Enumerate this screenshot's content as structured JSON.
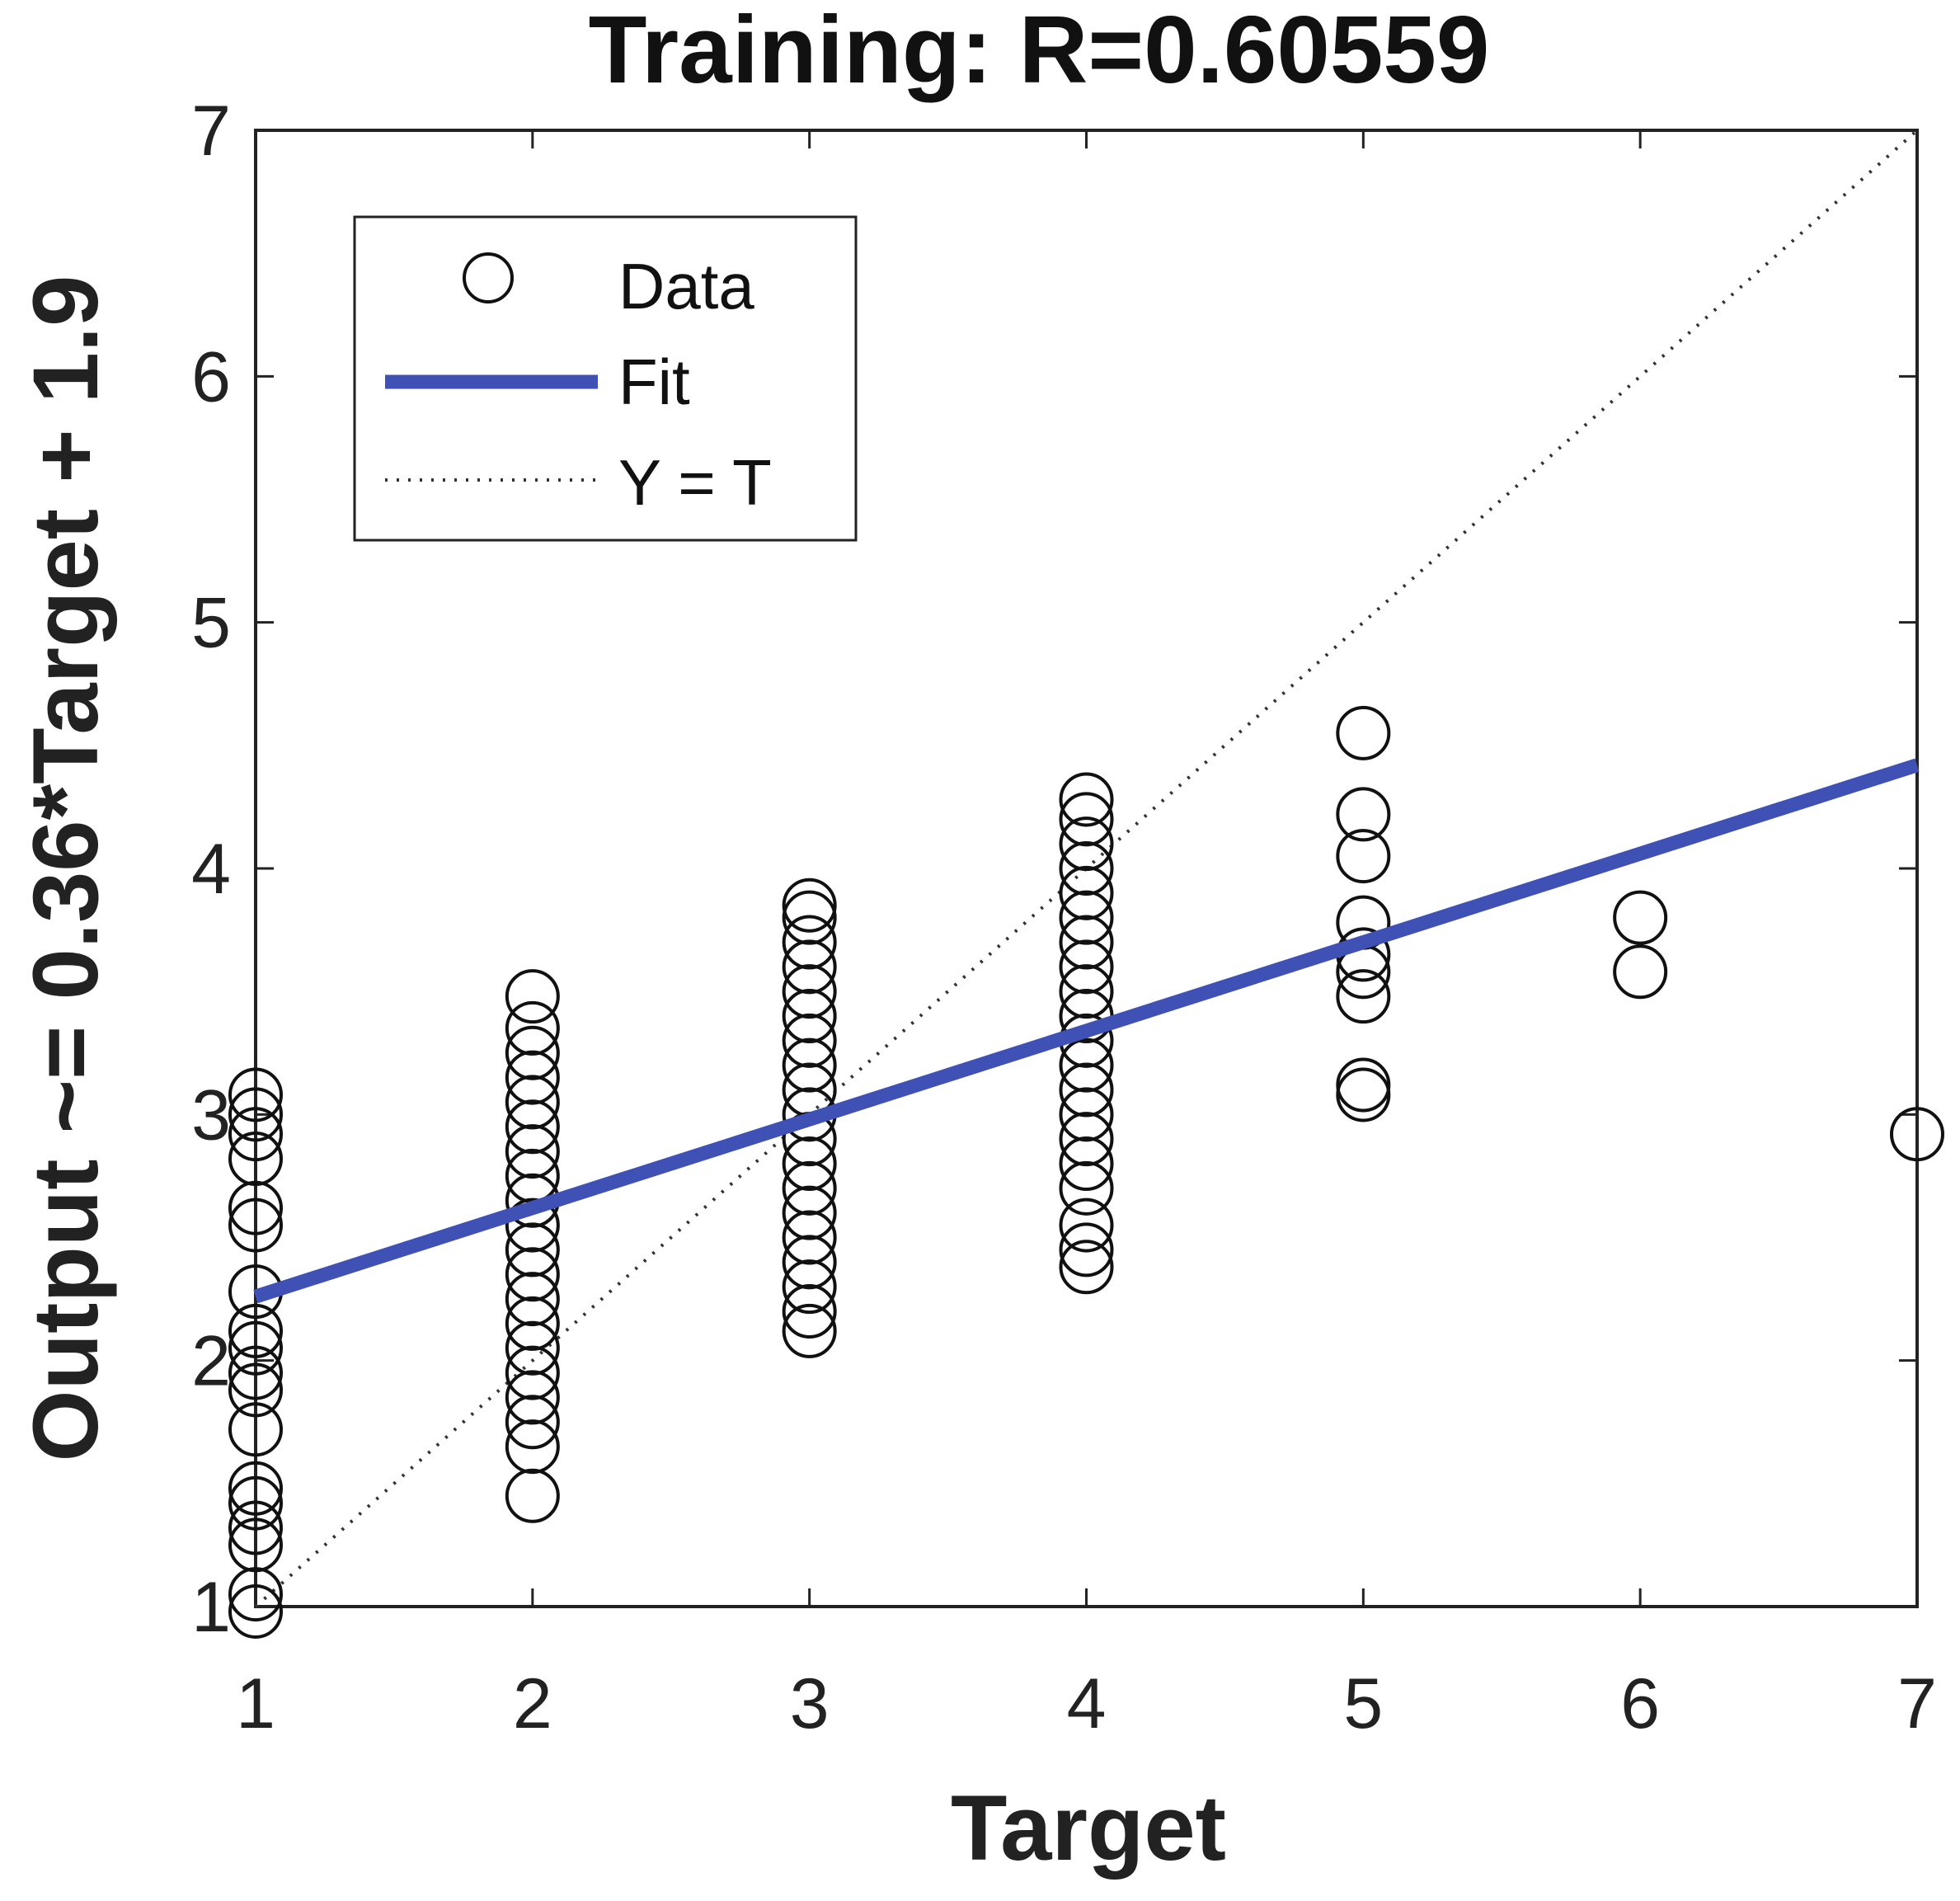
{
  "chart_data": {
    "type": "scatter",
    "title": "Training: R=0.60559",
    "xlabel": "Target",
    "ylabel": "Output ~= 0.36*Target + 1.9",
    "xlim": [
      1,
      7
    ],
    "ylim": [
      1,
      7
    ],
    "x_ticks": [
      "1",
      "2",
      "3",
      "4",
      "5",
      "6",
      "7"
    ],
    "y_ticks": [
      "1",
      "2",
      "3",
      "4",
      "5",
      "6",
      "7"
    ],
    "grid": false,
    "legend_placement": "top-left",
    "legend": [
      "Data",
      "Fit",
      "Y = T"
    ],
    "colors": {
      "data": "#111111",
      "fit": "#3f51b5",
      "identity": "#333333"
    },
    "fit": {
      "slope": 0.36,
      "intercept": 1.9
    },
    "series": [
      {
        "name": "Data",
        "marker": "circle",
        "points": [
          [
            1,
            0.98
          ],
          [
            1,
            1.05
          ],
          [
            1,
            1.25
          ],
          [
            1,
            1.32
          ],
          [
            1,
            1.42
          ],
          [
            1,
            1.48
          ],
          [
            1,
            1.72
          ],
          [
            1,
            1.88
          ],
          [
            1,
            1.95
          ],
          [
            1,
            2.05
          ],
          [
            1,
            2.12
          ],
          [
            1,
            2.28
          ],
          [
            1,
            2.55
          ],
          [
            1,
            2.62
          ],
          [
            1,
            2.82
          ],
          [
            1,
            2.92
          ],
          [
            1,
            3.0
          ],
          [
            1,
            3.08
          ],
          [
            2,
            1.45
          ],
          [
            2,
            1.65
          ],
          [
            2,
            1.75
          ],
          [
            2,
            1.85
          ],
          [
            2,
            1.95
          ],
          [
            2,
            2.05
          ],
          [
            2,
            2.15
          ],
          [
            2,
            2.25
          ],
          [
            2,
            2.35
          ],
          [
            2,
            2.45
          ],
          [
            2,
            2.55
          ],
          [
            2,
            2.65
          ],
          [
            2,
            2.75
          ],
          [
            2,
            2.85
          ],
          [
            2,
            2.95
          ],
          [
            2,
            3.05
          ],
          [
            2,
            3.15
          ],
          [
            2,
            3.25
          ],
          [
            2,
            3.35
          ],
          [
            2,
            3.48
          ],
          [
            3,
            2.12
          ],
          [
            3,
            2.2
          ],
          [
            3,
            2.3
          ],
          [
            3,
            2.4
          ],
          [
            3,
            2.5
          ],
          [
            3,
            2.6
          ],
          [
            3,
            2.7
          ],
          [
            3,
            2.8
          ],
          [
            3,
            2.9
          ],
          [
            3,
            3.0
          ],
          [
            3,
            3.1
          ],
          [
            3,
            3.2
          ],
          [
            3,
            3.3
          ],
          [
            3,
            3.4
          ],
          [
            3,
            3.5
          ],
          [
            3,
            3.6
          ],
          [
            3,
            3.7
          ],
          [
            3,
            3.8
          ],
          [
            3,
            3.85
          ],
          [
            4,
            2.38
          ],
          [
            4,
            2.45
          ],
          [
            4,
            2.55
          ],
          [
            4,
            2.7
          ],
          [
            4,
            2.8
          ],
          [
            4,
            2.9
          ],
          [
            4,
            3.0
          ],
          [
            4,
            3.1
          ],
          [
            4,
            3.2
          ],
          [
            4,
            3.3
          ],
          [
            4,
            3.4
          ],
          [
            4,
            3.5
          ],
          [
            4,
            3.6
          ],
          [
            4,
            3.7
          ],
          [
            4,
            3.8
          ],
          [
            4,
            3.9
          ],
          [
            4,
            4.0
          ],
          [
            4,
            4.1
          ],
          [
            4,
            4.2
          ],
          [
            4,
            4.28
          ],
          [
            5,
            3.08
          ],
          [
            5,
            3.12
          ],
          [
            5,
            3.48
          ],
          [
            5,
            3.58
          ],
          [
            5,
            3.65
          ],
          [
            5,
            3.78
          ],
          [
            5,
            4.05
          ],
          [
            5,
            4.22
          ],
          [
            5,
            4.55
          ],
          [
            6,
            3.58
          ],
          [
            6,
            3.8
          ],
          [
            7,
            2.92
          ]
        ]
      },
      {
        "name": "Fit",
        "type": "line",
        "x": [
          1,
          7
        ],
        "y": [
          2.26,
          4.42
        ]
      },
      {
        "name": "Y = T",
        "type": "line",
        "style": "dotted",
        "x": [
          1,
          7
        ],
        "y": [
          1,
          7
        ]
      }
    ]
  }
}
